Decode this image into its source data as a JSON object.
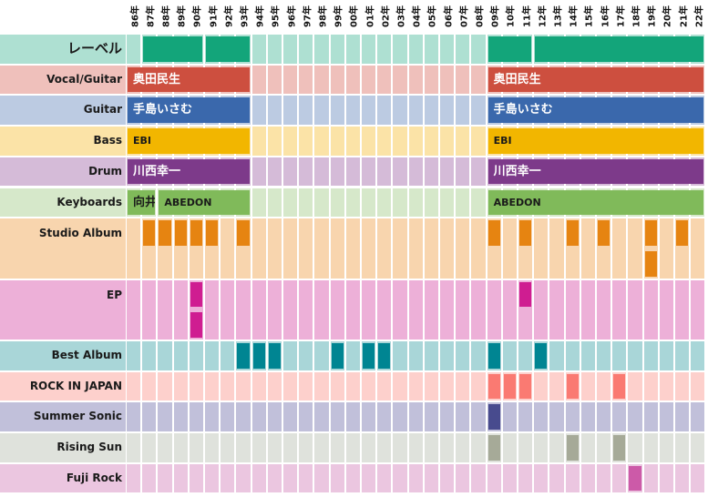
{
  "chart_data": {
    "type": "table",
    "title": "",
    "years": [
      "86年",
      "87年",
      "88年",
      "89年",
      "90年",
      "91年",
      "92年",
      "93年",
      "94年",
      "95年",
      "96年",
      "97年",
      "98年",
      "99年",
      "00年",
      "01年",
      "02年",
      "03年",
      "04年",
      "05年",
      "06年",
      "07年",
      "08年",
      "09年",
      "10年",
      "11年",
      "12年",
      "13年",
      "14年",
      "15年",
      "16年",
      "17年",
      "18年",
      "19年",
      "20年",
      "21年",
      "22年"
    ],
    "rows": [
      {
        "key": "label",
        "name": "レーベル",
        "bg": "#aee0d2",
        "sub": 1,
        "bars": [
          {
            "start": "87年",
            "end": "90年",
            "text": "",
            "color": "#13a57a",
            "textColor": "#ffffff"
          },
          {
            "start": "91年",
            "end": "93年",
            "text": "",
            "color": "#13a57a",
            "textColor": "#ffffff"
          },
          {
            "start": "09年",
            "end": "11年",
            "text": "",
            "color": "#13a57a",
            "textColor": "#ffffff"
          },
          {
            "start": "12年",
            "end": "22年",
            "text": "",
            "color": "#13a57a",
            "textColor": "#ffffff"
          }
        ]
      },
      {
        "key": "vocal",
        "name": "Vocal/Guitar",
        "bg": "#efc0bb",
        "sub": 1,
        "bars": [
          {
            "start": "86年",
            "end": "93年",
            "text": "奥田民生",
            "color": "#cd4f3f",
            "textColor": "#ffffff"
          },
          {
            "start": "09年",
            "end": "22年",
            "text": "奥田民生",
            "color": "#cd4f3f",
            "textColor": "#ffffff"
          }
        ]
      },
      {
        "key": "guitar",
        "name": "Guitar",
        "bg": "#bccbe2",
        "sub": 1,
        "bars": [
          {
            "start": "86年",
            "end": "93年",
            "text": "手島いさむ",
            "color": "#3a68ac",
            "textColor": "#ffffff"
          },
          {
            "start": "09年",
            "end": "22年",
            "text": "手島いさむ",
            "color": "#3a68ac",
            "textColor": "#ffffff"
          }
        ]
      },
      {
        "key": "bass",
        "name": "Bass",
        "bg": "#fbe3a7",
        "sub": 1,
        "bars": [
          {
            "start": "86年",
            "end": "93年",
            "text": "EBI",
            "color": "#f2b600",
            "textColor": "#1a1a1a"
          },
          {
            "start": "09年",
            "end": "22年",
            "text": "EBI",
            "color": "#f2b600",
            "textColor": "#1a1a1a"
          }
        ]
      },
      {
        "key": "drum",
        "name": "Drum",
        "bg": "#d5bbd8",
        "sub": 1,
        "bars": [
          {
            "start": "86年",
            "end": "93年",
            "text": "川西幸一",
            "color": "#7d3a8a",
            "textColor": "#ffffff"
          },
          {
            "start": "09年",
            "end": "22年",
            "text": "川西幸一",
            "color": "#7d3a8a",
            "textColor": "#ffffff"
          }
        ]
      },
      {
        "key": "keyboards",
        "name": "Keyboards",
        "bg": "#d6e8ca",
        "sub": 1,
        "bars": [
          {
            "start": "86年",
            "end": "87年",
            "text": "向井",
            "color": "#80ba5a",
            "textColor": "#1a1a1a"
          },
          {
            "start": "88年",
            "end": "93年",
            "text": "ABEDON",
            "color": "#80ba5a",
            "textColor": "#1a1a1a"
          },
          {
            "start": "09年",
            "end": "22年",
            "text": "ABEDON",
            "color": "#80ba5a",
            "textColor": "#1a1a1a"
          }
        ]
      },
      {
        "key": "studio",
        "name": "Studio Album",
        "bg": "#f8d5ae",
        "sub": 2,
        "eventColor": "#e68411",
        "events": [
          {
            "year": "87年",
            "count": 1
          },
          {
            "year": "88年",
            "count": 1
          },
          {
            "year": "89年",
            "count": 1
          },
          {
            "year": "90年",
            "count": 1
          },
          {
            "year": "91年",
            "count": 1
          },
          {
            "year": "93年",
            "count": 1
          },
          {
            "year": "09年",
            "count": 1
          },
          {
            "year": "11年",
            "count": 1
          },
          {
            "year": "14年",
            "count": 1
          },
          {
            "year": "16年",
            "count": 1
          },
          {
            "year": "19年",
            "count": 2
          },
          {
            "year": "21年",
            "count": 1
          }
        ]
      },
      {
        "key": "ep",
        "name": "EP",
        "bg": "#edb0d8",
        "sub": 2,
        "eventColor": "#cf1d91",
        "events": [
          {
            "year": "90年",
            "count": 2
          },
          {
            "year": "11年",
            "count": 1
          }
        ]
      },
      {
        "key": "best",
        "name": "Best Album",
        "bg": "#a9d6d8",
        "sub": 1,
        "eventColor": "#008592",
        "events": [
          {
            "year": "93年",
            "count": 1
          },
          {
            "year": "94年",
            "count": 1
          },
          {
            "year": "95年",
            "count": 1
          },
          {
            "year": "99年",
            "count": 1
          },
          {
            "year": "01年",
            "count": 1
          },
          {
            "year": "02年",
            "count": 1
          },
          {
            "year": "09年",
            "count": 1
          },
          {
            "year": "12年",
            "count": 1
          }
        ]
      },
      {
        "key": "rij",
        "name": "ROCK IN JAPAN",
        "bg": "#fdd0cc",
        "sub": 1,
        "eventColor": "#fa7a72",
        "events": [
          {
            "year": "09年",
            "count": 1
          },
          {
            "year": "10年",
            "count": 1
          },
          {
            "year": "11年",
            "count": 1
          },
          {
            "year": "14年",
            "count": 1
          },
          {
            "year": "17年",
            "count": 1
          }
        ]
      },
      {
        "key": "summer",
        "name": "Summer Sonic",
        "bg": "#c1c0da",
        "sub": 1,
        "eventColor": "#484b8e",
        "events": [
          {
            "year": "09年",
            "count": 1
          }
        ]
      },
      {
        "key": "rising",
        "name": "Rising Sun",
        "bg": "#dfe2dc",
        "sub": 1,
        "eventColor": "#a6aa98",
        "events": [
          {
            "year": "09年",
            "count": 1
          },
          {
            "year": "14年",
            "count": 1
          },
          {
            "year": "17年",
            "count": 1
          }
        ]
      },
      {
        "key": "fuji",
        "name": "Fuji Rock",
        "bg": "#ebc6e0",
        "sub": 1,
        "eventColor": "#cc5aa8",
        "events": [
          {
            "year": "18年",
            "count": 1
          }
        ]
      }
    ]
  }
}
